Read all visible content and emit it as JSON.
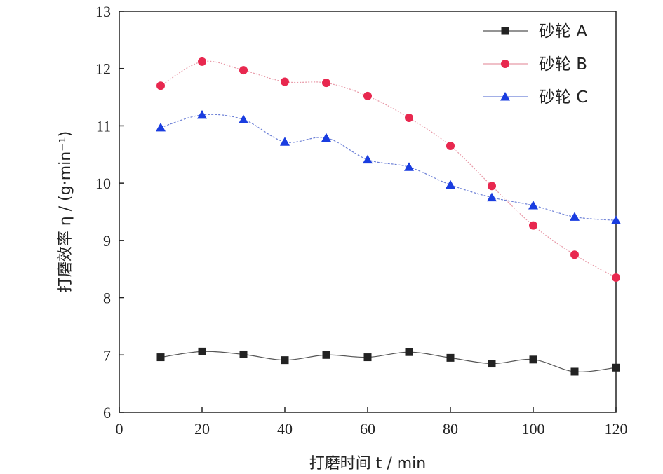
{
  "chart_data": {
    "type": "line",
    "xlabel": "打磨时间 t / min",
    "ylabel": "打磨效率 η / (g·min⁻¹)",
    "xlim": [
      0,
      120
    ],
    "ylim": [
      6,
      13
    ],
    "xticks": [
      0,
      20,
      40,
      60,
      80,
      100,
      120
    ],
    "yticks": [
      6,
      7,
      8,
      9,
      10,
      11,
      12,
      13
    ],
    "grid": false,
    "legend_position": "top-right",
    "x": [
      10,
      20,
      30,
      40,
      50,
      60,
      70,
      80,
      90,
      100,
      110,
      120
    ],
    "series": [
      {
        "name": "砂轮 A",
        "marker": "square",
        "color": "#222222",
        "line_color": "#555555",
        "values": [
          6.96,
          7.06,
          7.01,
          6.91,
          7.0,
          6.96,
          7.05,
          6.95,
          6.85,
          6.92,
          6.71,
          6.78
        ]
      },
      {
        "name": "砂轮 B",
        "marker": "circle",
        "color": "#e8284f",
        "line_color": "#e89aa8",
        "values": [
          11.7,
          12.12,
          11.97,
          11.77,
          11.75,
          11.52,
          11.14,
          10.65,
          9.95,
          9.26,
          8.75,
          8.35
        ]
      },
      {
        "name": "砂轮 C",
        "marker": "triangle",
        "color": "#1a3de0",
        "line_color": "#6b7fd6",
        "values": [
          10.97,
          11.19,
          11.11,
          10.72,
          10.79,
          10.41,
          10.28,
          9.97,
          9.75,
          9.61,
          9.41,
          9.35
        ]
      }
    ]
  }
}
